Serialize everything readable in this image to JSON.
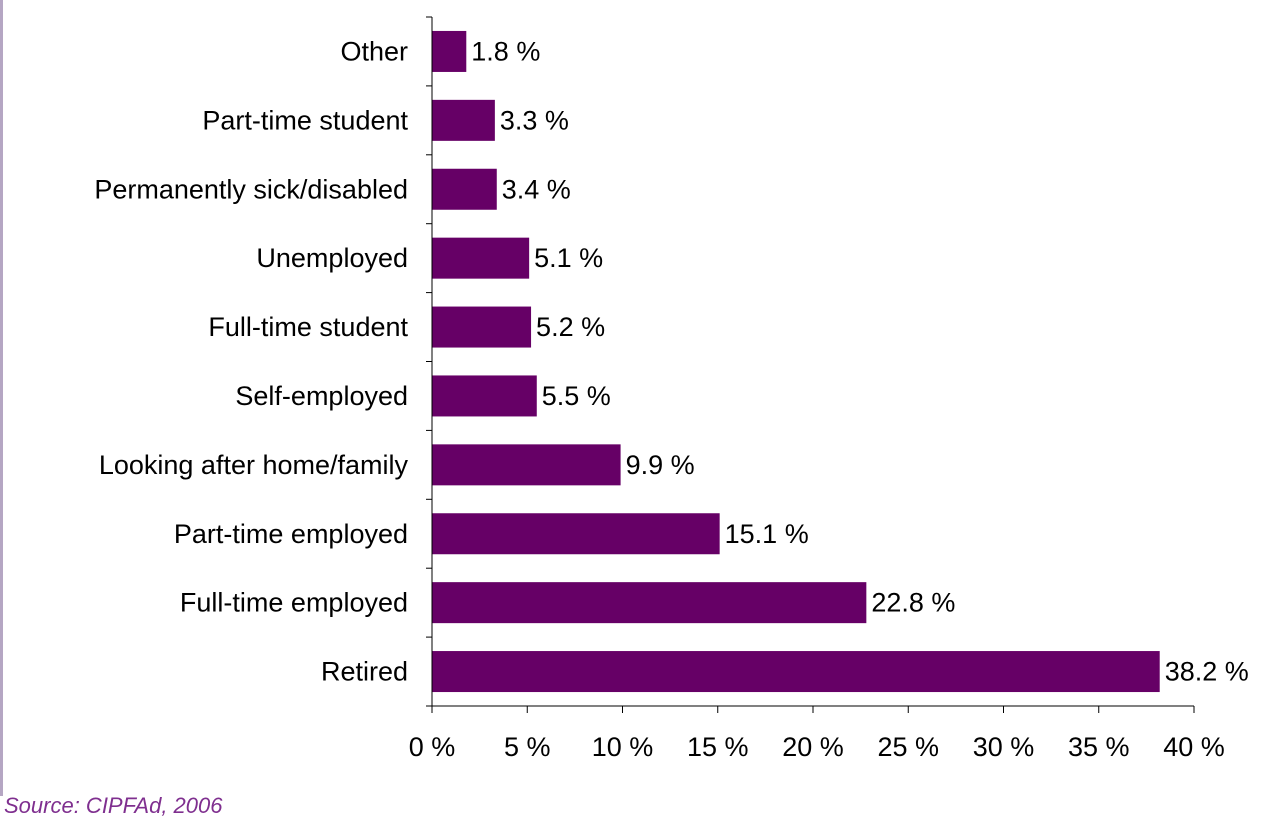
{
  "source_note": "Source: CIPFAd, 2006",
  "colors": {
    "bar": "#660066",
    "axis": "#000000",
    "source": "#7f2f8f",
    "left_border": "#b5a6c3"
  },
  "chart_data": {
    "type": "bar",
    "orientation": "horizontal",
    "categories": [
      "Other",
      "Part-time student",
      "Permanently sick/disabled",
      "Unemployed",
      "Full-time student",
      "Self-employed",
      "Looking after home/family",
      "Part-time employed",
      "Full-time employed",
      "Retired"
    ],
    "values": [
      1.8,
      3.3,
      3.4,
      5.1,
      5.2,
      5.5,
      9.9,
      15.1,
      22.8,
      38.2
    ],
    "value_labels": [
      "1.8 %",
      "3.3 %",
      "3.4 %",
      "5.1 %",
      "5.2 %",
      "5.5 %",
      "9.9 %",
      "15.1 %",
      "22.8 %",
      "38.2 %"
    ],
    "x_ticks": [
      0,
      5,
      10,
      15,
      20,
      25,
      30,
      35,
      40
    ],
    "x_tick_labels": [
      "0 %",
      "5 %",
      "10 %",
      "15 %",
      "20 %",
      "25 %",
      "30 %",
      "35 %",
      "40 %"
    ],
    "xlim": [
      0,
      40
    ],
    "grid": false,
    "legend": "none"
  }
}
